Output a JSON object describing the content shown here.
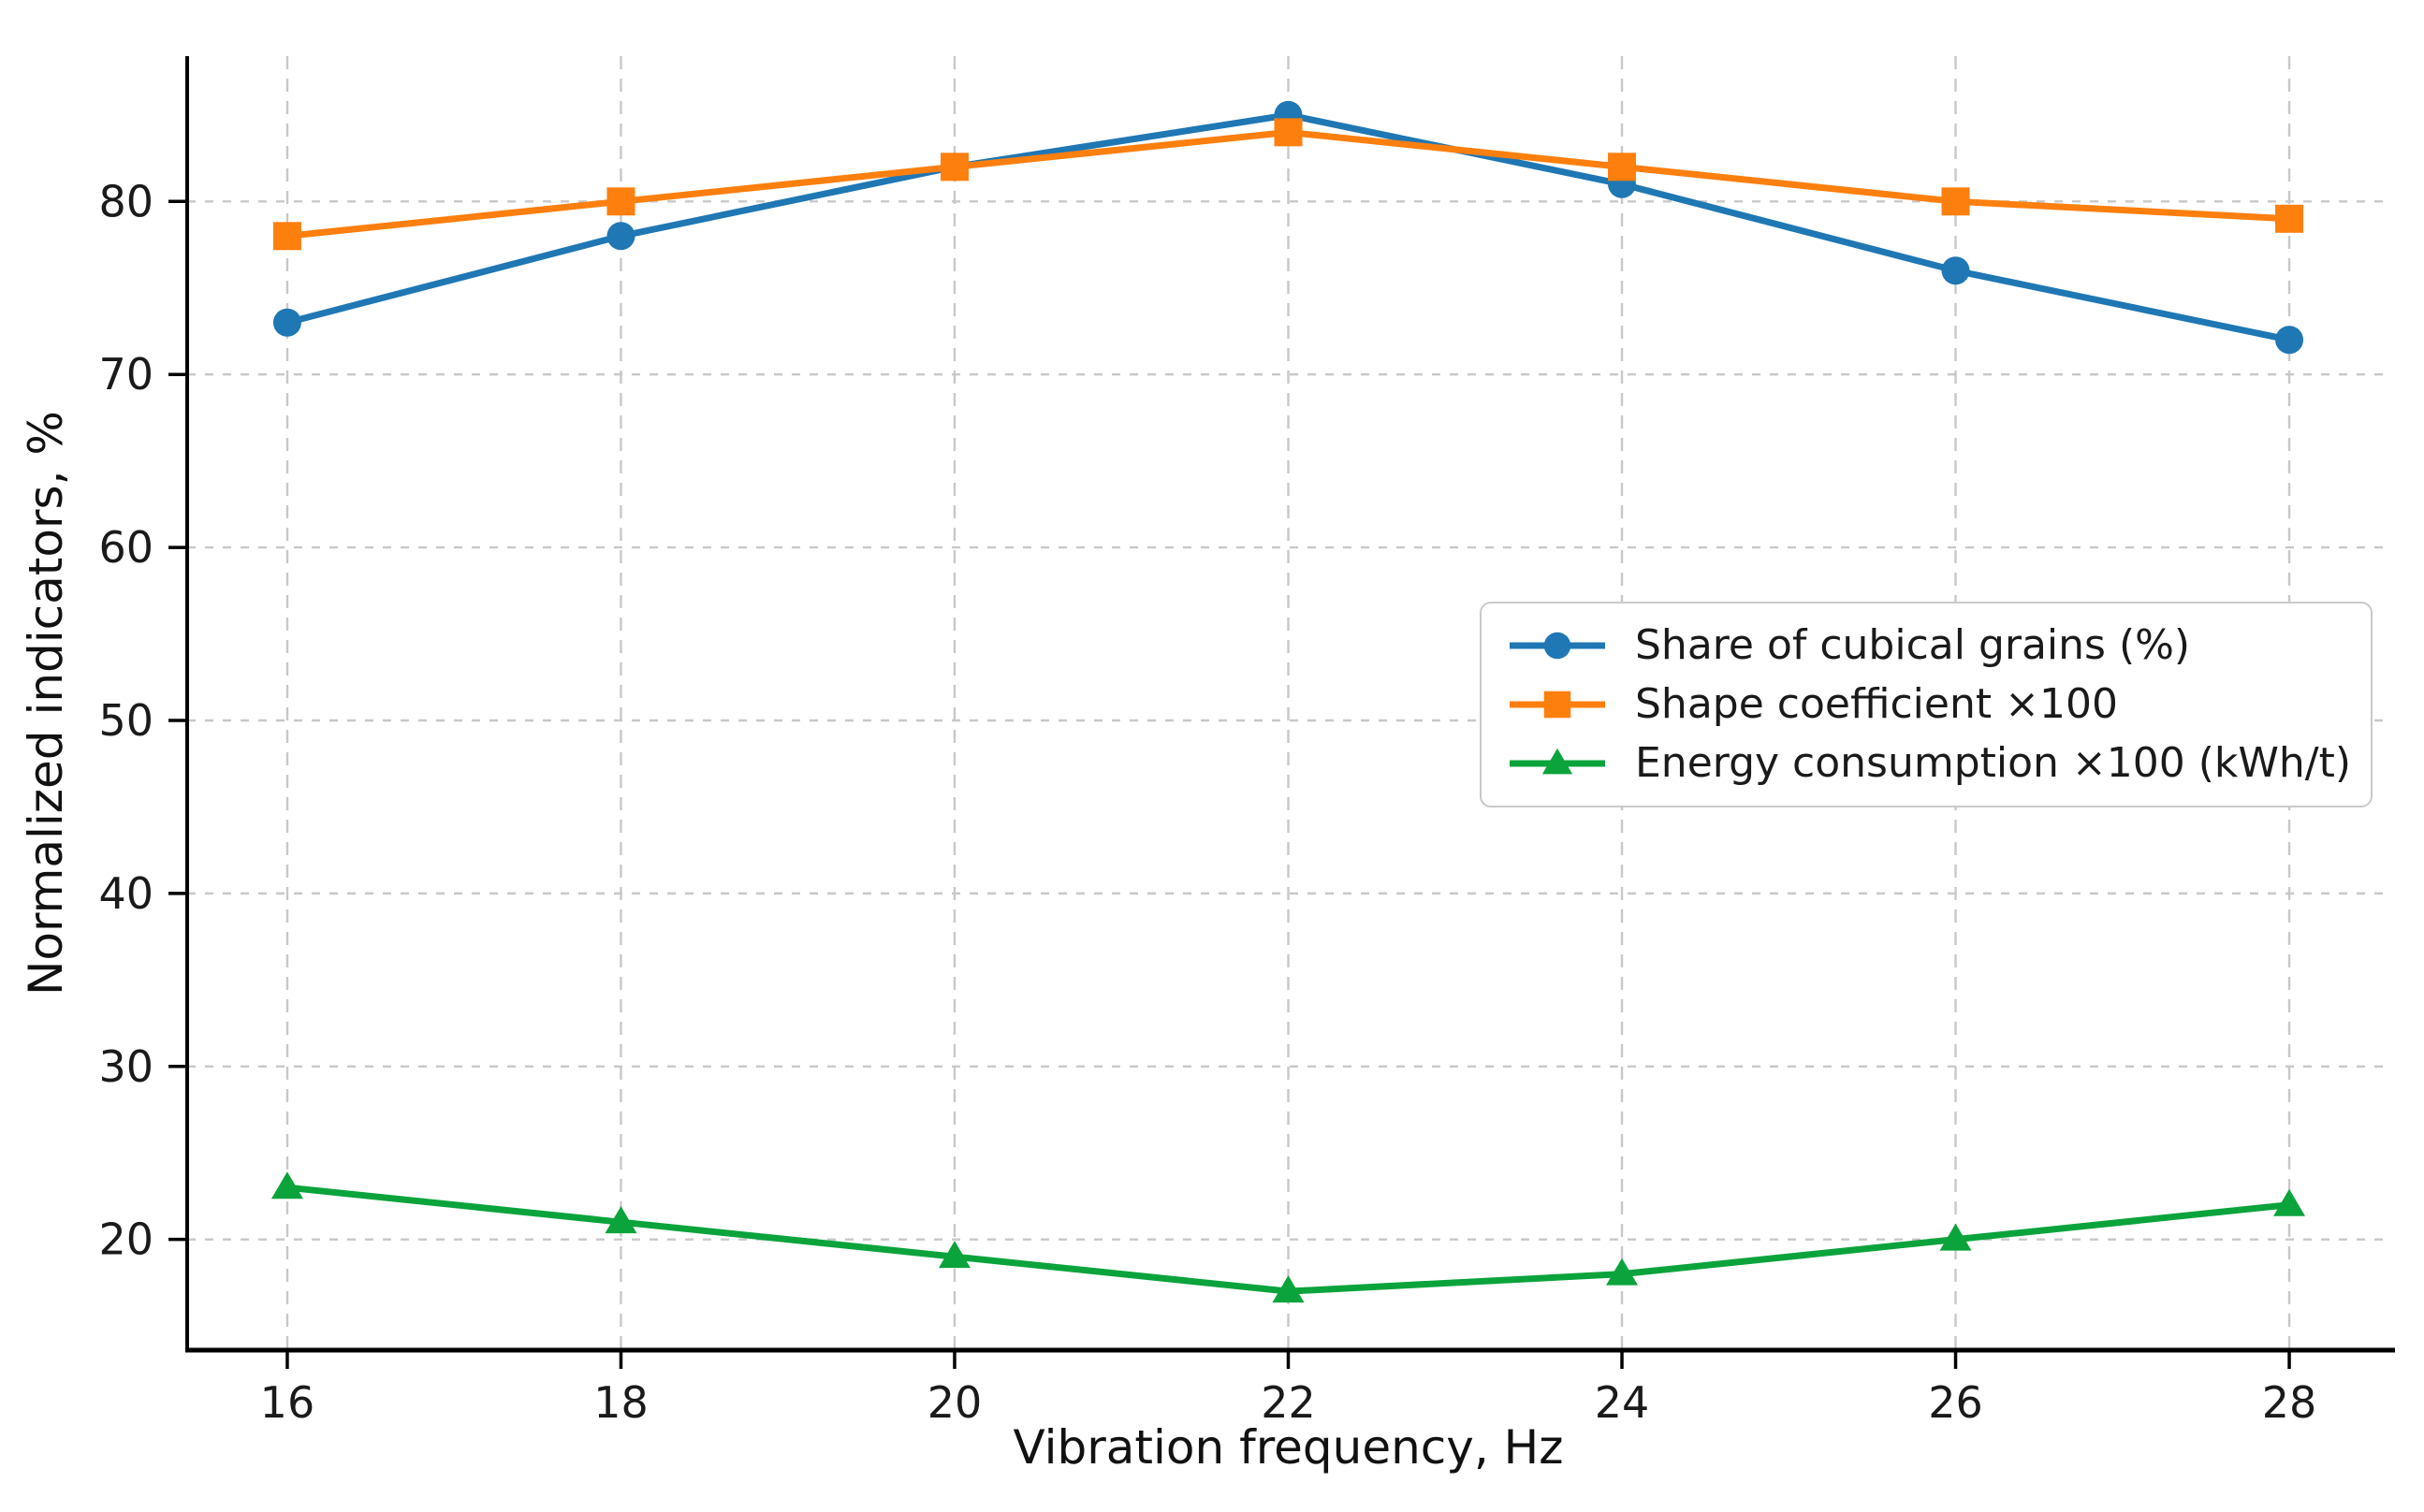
{
  "chart_data": {
    "type": "line",
    "title": "",
    "xlabel": "Vibration frequency, Hz",
    "ylabel": "Normalized indicators, %",
    "x": [
      16,
      18,
      20,
      22,
      24,
      26,
      28
    ],
    "series": [
      {
        "name": "Share of cubical grains (%)",
        "marker": "circle",
        "color": "#1f77b4",
        "values": [
          73,
          78,
          82,
          85,
          81,
          76,
          72
        ]
      },
      {
        "name": "Shape coefficient ×100",
        "marker": "square",
        "color": "#fd7f0e",
        "values": [
          78,
          80,
          82,
          84,
          82,
          80,
          79
        ]
      },
      {
        "name": "Energy consumption ×100 (kWh/t)",
        "marker": "triangle",
        "color": "#0ba33c",
        "values": [
          23,
          21,
          19,
          17,
          18,
          20,
          22
        ]
      }
    ],
    "xticks": [
      16,
      18,
      20,
      22,
      24,
      26,
      28
    ],
    "yticks": [
      20,
      30,
      40,
      50,
      60,
      70,
      80
    ],
    "xlim": [
      15.4,
      28.6
    ],
    "ylim": [
      13.6,
      88.4
    ],
    "grid": true,
    "grid_color": "#c8c8c8",
    "axis_color": "#000000",
    "legend_position": "center-right"
  }
}
